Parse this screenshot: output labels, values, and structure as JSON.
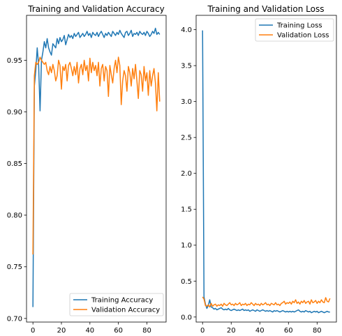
{
  "colors": {
    "training": "#1f77b4",
    "validation": "#ff7f0e"
  },
  "chart_data": [
    {
      "type": "line",
      "title": "Training and Validation Accuracy",
      "xlabel": "",
      "ylabel": "",
      "xlim": [
        -4.5,
        93.5
      ],
      "ylim": [
        0.6965,
        0.9935
      ],
      "x_ticks": [
        0,
        20,
        40,
        60,
        80
      ],
      "y_ticks": [
        0.7,
        0.75,
        0.8,
        0.85,
        0.9,
        0.95
      ],
      "y_tick_labels": [
        "0.70",
        "0.75",
        "0.80",
        "0.85",
        "0.90",
        "0.95"
      ],
      "legend_position": "lower-right",
      "grid": false,
      "series": [
        {
          "name": "Training Accuracy",
          "color": "#1f77b4",
          "x": [
            0,
            1,
            2,
            3,
            4,
            5,
            6,
            7,
            8,
            9,
            10,
            11,
            12,
            13,
            14,
            15,
            16,
            17,
            18,
            19,
            20,
            21,
            22,
            23,
            24,
            25,
            26,
            27,
            28,
            29,
            30,
            31,
            32,
            33,
            34,
            35,
            36,
            37,
            38,
            39,
            40,
            41,
            42,
            43,
            44,
            45,
            46,
            47,
            48,
            49,
            50,
            51,
            52,
            53,
            54,
            55,
            56,
            57,
            58,
            59,
            60,
            61,
            62,
            63,
            64,
            65,
            66,
            67,
            68,
            69,
            70,
            71,
            72,
            73,
            74,
            75,
            76,
            77,
            78,
            79,
            80,
            81,
            82,
            83,
            84,
            85,
            86,
            87,
            88,
            89
          ],
          "values": [
            0.711,
            0.925,
            0.94,
            0.962,
            0.945,
            0.901,
            0.95,
            0.958,
            0.968,
            0.962,
            0.971,
            0.962,
            0.958,
            0.955,
            0.966,
            0.964,
            0.962,
            0.971,
            0.966,
            0.972,
            0.968,
            0.97,
            0.974,
            0.965,
            0.97,
            0.975,
            0.972,
            0.974,
            0.971,
            0.976,
            0.973,
            0.975,
            0.977,
            0.972,
            0.974,
            0.976,
            0.973,
            0.975,
            0.978,
            0.974,
            0.976,
            0.972,
            0.977,
            0.975,
            0.974,
            0.977,
            0.973,
            0.976,
            0.978,
            0.975,
            0.972,
            0.976,
            0.974,
            0.977,
            0.975,
            0.973,
            0.978,
            0.976,
            0.974,
            0.977,
            0.975,
            0.979,
            0.976,
            0.974,
            0.972,
            0.977,
            0.978,
            0.974,
            0.976,
            0.979,
            0.973,
            0.976,
            0.975,
            0.977,
            0.974,
            0.978,
            0.976,
            0.975,
            0.977,
            0.974,
            0.978,
            0.976,
            0.973,
            0.975,
            0.978,
            0.976,
            0.981,
            0.975,
            0.977,
            0.975
          ]
        },
        {
          "name": "Validation Accuracy",
          "color": "#ff7f0e",
          "x": [
            0,
            1,
            2,
            3,
            4,
            5,
            6,
            7,
            8,
            9,
            10,
            11,
            12,
            13,
            14,
            15,
            16,
            17,
            18,
            19,
            20,
            21,
            22,
            23,
            24,
            25,
            26,
            27,
            28,
            29,
            30,
            31,
            32,
            33,
            34,
            35,
            36,
            37,
            38,
            39,
            40,
            41,
            42,
            43,
            44,
            45,
            46,
            47,
            48,
            49,
            50,
            51,
            52,
            53,
            54,
            55,
            56,
            57,
            58,
            59,
            60,
            61,
            62,
            63,
            64,
            65,
            66,
            67,
            68,
            69,
            70,
            71,
            72,
            73,
            74,
            75,
            76,
            77,
            78,
            79,
            80,
            81,
            82,
            83,
            84,
            85,
            86,
            87,
            88,
            89
          ],
          "values": [
            0.762,
            0.935,
            0.948,
            0.946,
            0.948,
            0.953,
            0.95,
            0.948,
            0.946,
            0.948,
            0.94,
            0.936,
            0.944,
            0.938,
            0.946,
            0.94,
            0.93,
            0.935,
            0.95,
            0.945,
            0.922,
            0.944,
            0.94,
            0.946,
            0.93,
            0.945,
            0.948,
            0.942,
            0.935,
            0.944,
            0.936,
            0.948,
            0.928,
            0.942,
            0.946,
            0.936,
            0.95,
            0.94,
            0.945,
            0.93,
            0.952,
            0.938,
            0.948,
            0.94,
            0.945,
            0.935,
            0.948,
            0.925,
            0.942,
            0.946,
            0.93,
            0.944,
            0.94,
            0.915,
            0.945,
            0.936,
            0.928,
            0.942,
            0.95,
            0.938,
            0.953,
            0.945,
            0.907,
            0.93,
            0.94,
            0.935,
            0.92,
            0.944,
            0.938,
            0.925,
            0.942,
            0.932,
            0.946,
            0.93,
            0.913,
            0.94,
            0.936,
            0.92,
            0.944,
            0.93,
            0.938,
            0.916,
            0.94,
            0.925,
            0.935,
            0.942,
            0.928,
            0.901,
            0.938,
            0.91
          ]
        }
      ]
    },
    {
      "type": "line",
      "title": "Training and Validation Loss",
      "xlabel": "",
      "ylabel": "",
      "xlim": [
        -4.5,
        93.5
      ],
      "ylim": [
        -0.07,
        4.2
      ],
      "x_ticks": [
        0,
        20,
        40,
        60,
        80
      ],
      "y_ticks": [
        0.0,
        0.5,
        1.0,
        1.5,
        2.0,
        2.5,
        3.0,
        3.5,
        4.0
      ],
      "y_tick_labels": [
        "0.0",
        "0.5",
        "1.0",
        "1.5",
        "2.0",
        "2.5",
        "3.0",
        "3.5",
        "4.0"
      ],
      "legend_position": "upper-right",
      "grid": false,
      "series": [
        {
          "name": "Training Loss",
          "color": "#1f77b4",
          "x": [
            0,
            1,
            2,
            3,
            4,
            5,
            6,
            7,
            8,
            9,
            10,
            11,
            12,
            13,
            14,
            15,
            16,
            17,
            18,
            19,
            20,
            21,
            22,
            23,
            24,
            25,
            26,
            27,
            28,
            29,
            30,
            31,
            32,
            33,
            34,
            35,
            36,
            37,
            38,
            39,
            40,
            41,
            42,
            43,
            44,
            45,
            46,
            47,
            48,
            49,
            50,
            51,
            52,
            53,
            54,
            55,
            56,
            57,
            58,
            59,
            60,
            61,
            62,
            63,
            64,
            65,
            66,
            67,
            68,
            69,
            70,
            71,
            72,
            73,
            74,
            75,
            76,
            77,
            78,
            79,
            80,
            81,
            82,
            83,
            84,
            85,
            86,
            87,
            88,
            89
          ],
          "values": [
            3.99,
            0.28,
            0.18,
            0.12,
            0.16,
            0.24,
            0.14,
            0.13,
            0.11,
            0.12,
            0.1,
            0.11,
            0.12,
            0.13,
            0.11,
            0.1,
            0.11,
            0.1,
            0.12,
            0.1,
            0.09,
            0.1,
            0.11,
            0.1,
            0.09,
            0.1,
            0.09,
            0.1,
            0.11,
            0.09,
            0.1,
            0.09,
            0.1,
            0.08,
            0.09,
            0.1,
            0.09,
            0.08,
            0.1,
            0.09,
            0.08,
            0.09,
            0.1,
            0.09,
            0.08,
            0.09,
            0.08,
            0.09,
            0.08,
            0.07,
            0.09,
            0.08,
            0.09,
            0.08,
            0.07,
            0.08,
            0.09,
            0.08,
            0.07,
            0.08,
            0.07,
            0.08,
            0.07,
            0.08,
            0.07,
            0.08,
            0.09,
            0.1,
            0.08,
            0.07,
            0.08,
            0.07,
            0.09,
            0.08,
            0.07,
            0.08,
            0.06,
            0.07,
            0.08,
            0.07,
            0.08,
            0.06,
            0.07,
            0.08,
            0.07,
            0.06,
            0.07,
            0.08,
            0.07,
            0.07
          ]
        },
        {
          "name": "Validation Loss",
          "color": "#ff7f0e",
          "x": [
            0,
            1,
            2,
            3,
            4,
            5,
            6,
            7,
            8,
            9,
            10,
            11,
            12,
            13,
            14,
            15,
            16,
            17,
            18,
            19,
            20,
            21,
            22,
            23,
            24,
            25,
            26,
            27,
            28,
            29,
            30,
            31,
            32,
            33,
            34,
            35,
            36,
            37,
            38,
            39,
            40,
            41,
            42,
            43,
            44,
            45,
            46,
            47,
            48,
            49,
            50,
            51,
            52,
            53,
            54,
            55,
            56,
            57,
            58,
            59,
            60,
            61,
            62,
            63,
            64,
            65,
            66,
            67,
            68,
            69,
            70,
            71,
            72,
            73,
            74,
            75,
            76,
            77,
            78,
            79,
            80,
            81,
            82,
            83,
            84,
            85,
            86,
            87,
            88,
            89
          ],
          "values": [
            0.28,
            0.25,
            0.16,
            0.15,
            0.17,
            0.14,
            0.19,
            0.15,
            0.17,
            0.18,
            0.15,
            0.17,
            0.16,
            0.18,
            0.15,
            0.19,
            0.17,
            0.16,
            0.18,
            0.2,
            0.17,
            0.18,
            0.16,
            0.19,
            0.17,
            0.18,
            0.2,
            0.16,
            0.18,
            0.17,
            0.19,
            0.16,
            0.18,
            0.17,
            0.2,
            0.18,
            0.16,
            0.19,
            0.17,
            0.18,
            0.16,
            0.19,
            0.17,
            0.18,
            0.2,
            0.17,
            0.18,
            0.16,
            0.19,
            0.18,
            0.17,
            0.2,
            0.17,
            0.18,
            0.16,
            0.19,
            0.2,
            0.22,
            0.18,
            0.2,
            0.19,
            0.21,
            0.18,
            0.22,
            0.2,
            0.24,
            0.19,
            0.21,
            0.18,
            0.22,
            0.2,
            0.23,
            0.19,
            0.21,
            0.22,
            0.18,
            0.24,
            0.2,
            0.21,
            0.23,
            0.19,
            0.22,
            0.2,
            0.24,
            0.21,
            0.2,
            0.27,
            0.22,
            0.21,
            0.26
          ]
        }
      ]
    }
  ]
}
